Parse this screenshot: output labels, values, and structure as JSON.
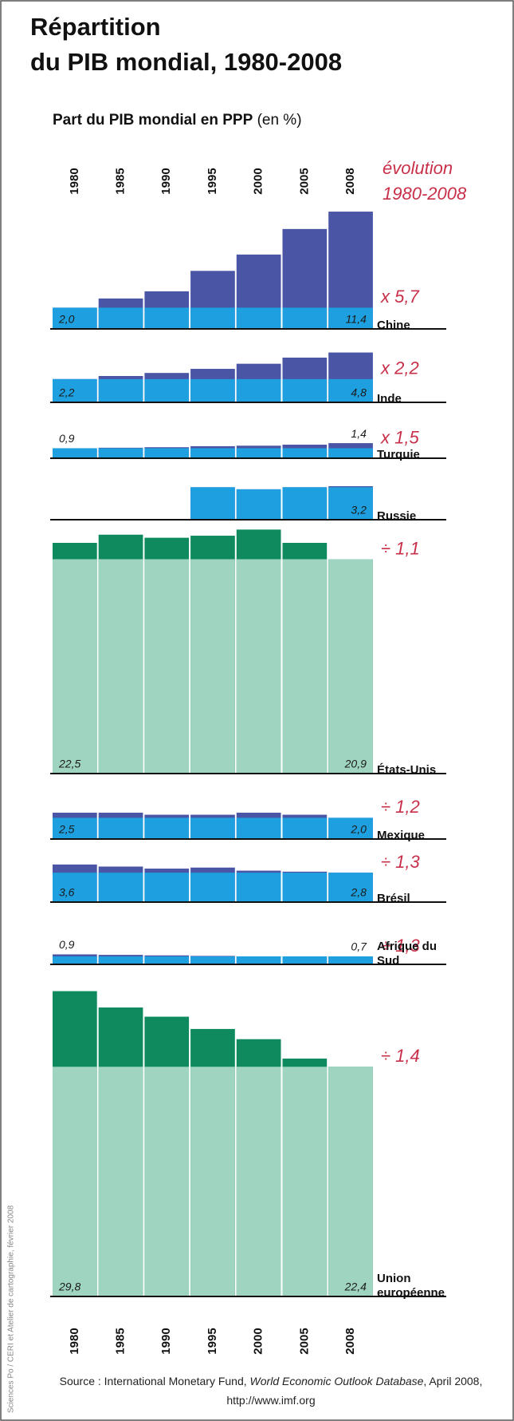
{
  "chart_data": {
    "type": "bar",
    "title": [
      "Répartition",
      "du PIB mondial, 1980-2008"
    ],
    "subtitle": {
      "main": "Part du PIB mondial en PPP",
      "unit": "(en %)"
    },
    "legend": [
      "évolution",
      "1980-2008"
    ],
    "categories": [
      "1980",
      "1985",
      "1990",
      "1995",
      "2000",
      "2005",
      "2008"
    ],
    "series": [
      {
        "name": "Chine",
        "color": "#4b55a6",
        "base_color": "#1ea0e0",
        "values": [
          2.0,
          2.9,
          3.6,
          5.6,
          7.2,
          9.7,
          11.4
        ],
        "value_labels": [
          "2,0",
          null,
          null,
          null,
          null,
          null,
          "11,4"
        ],
        "change": "x 5,7"
      },
      {
        "name": "Inde",
        "color": "#4b55a6",
        "base_color": "#1ea0e0",
        "values": [
          2.2,
          2.5,
          2.8,
          3.2,
          3.7,
          4.3,
          4.8
        ],
        "value_labels": [
          "2,2",
          null,
          null,
          null,
          null,
          null,
          "4,8"
        ],
        "change": "x 2,2"
      },
      {
        "name": "Turquie",
        "color": "#4b55a6",
        "base_color": "#1ea0e0",
        "values": [
          0.9,
          0.95,
          1.0,
          1.1,
          1.15,
          1.25,
          1.4
        ],
        "value_labels": [
          "0,9",
          null,
          null,
          null,
          null,
          null,
          "1,4"
        ],
        "change": "x 1,5"
      },
      {
        "name": "Russie",
        "color": "#4b55a6",
        "base_color": "#1ea0e0",
        "values": [
          null,
          null,
          null,
          3.1,
          2.9,
          3.1,
          3.2
        ],
        "value_labels": [
          null,
          null,
          null,
          null,
          null,
          null,
          "3,2"
        ]
      },
      {
        "name": "États-Unis",
        "color": "#0f8a5e",
        "base_color": "#9fd4c1",
        "values": [
          22.5,
          23.3,
          23.0,
          23.2,
          23.8,
          22.5,
          20.9
        ],
        "value_labels": [
          "22,5",
          null,
          null,
          null,
          null,
          null,
          "20,9"
        ],
        "change": "÷ 1,1"
      },
      {
        "name": "Mexique",
        "color": "#4b55a6",
        "base_color": "#1ea0e0",
        "values": [
          2.5,
          2.5,
          2.3,
          2.3,
          2.5,
          2.3,
          2.0
        ],
        "value_labels": [
          "2,5",
          null,
          null,
          null,
          null,
          null,
          "2,0"
        ],
        "change": "÷ 1,2"
      },
      {
        "name": "Brésil",
        "color": "#4b55a6",
        "base_color": "#1ea0e0",
        "values": [
          3.6,
          3.4,
          3.2,
          3.3,
          3.0,
          2.9,
          2.8
        ],
        "value_labels": [
          "3,6",
          null,
          null,
          null,
          null,
          null,
          "2,8"
        ],
        "change": "÷ 1,3"
      },
      {
        "name": "Afrique du Sud",
        "color": "#4b55a6",
        "base_color": "#1ea0e0",
        "values": [
          0.9,
          0.85,
          0.8,
          0.75,
          0.7,
          0.7,
          0.7
        ],
        "value_labels": [
          "0,9",
          null,
          null,
          null,
          null,
          null,
          "0,7"
        ],
        "change": "÷ 1,3"
      },
      {
        "name": "Union européenne",
        "color": "#0f8a5e",
        "base_color": "#9fd4c1",
        "values": [
          29.8,
          28.2,
          27.3,
          26.1,
          25.1,
          23.2,
          22.4
        ],
        "value_labels": [
          "29,8",
          null,
          null,
          null,
          null,
          null,
          "22,4"
        ],
        "change": "÷ 1,4"
      }
    ],
    "source": {
      "prefix": "Source : International Monetary Fund,",
      "italic": "World Economic Outlook Database",
      "suffix": ", April 2008, http://www.imf.org"
    },
    "credit": "Sciences Po / CERI et Atelier de cartographie, février 2008"
  }
}
